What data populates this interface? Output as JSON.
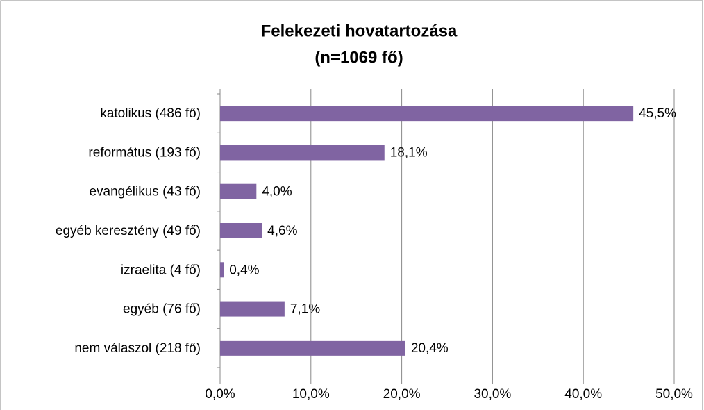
{
  "chart_data": {
    "type": "barh",
    "title": [
      "Felekezeti hovatartozása",
      "(n=1069 fő)"
    ],
    "categories": [
      "katolikus (486 fő)",
      "református (193 fő)",
      "evangélikus (43 fő)",
      "egyéb keresztény (49 fő)",
      "izraelita (4 fő)",
      "egyéb (76 fő)",
      "nem válaszol (218 fő)"
    ],
    "values": [
      45.5,
      18.1,
      4.0,
      4.6,
      0.4,
      7.1,
      20.4
    ],
    "value_labels": [
      "45,5%",
      "18,1%",
      "4,0%",
      "4,6%",
      "0,4%",
      "7,1%",
      "20,4%"
    ],
    "color": "#8064a2",
    "xlim": [
      0,
      50
    ],
    "xticks": [
      {
        "value": 0,
        "label": "0,0%"
      },
      {
        "value": 10,
        "label": "10,0%"
      },
      {
        "value": 20,
        "label": "20,0%"
      },
      {
        "value": 30,
        "label": "30,0%"
      },
      {
        "value": 40,
        "label": "40,0%"
      },
      {
        "value": 50,
        "label": "50,0%"
      }
    ],
    "grid": true
  }
}
